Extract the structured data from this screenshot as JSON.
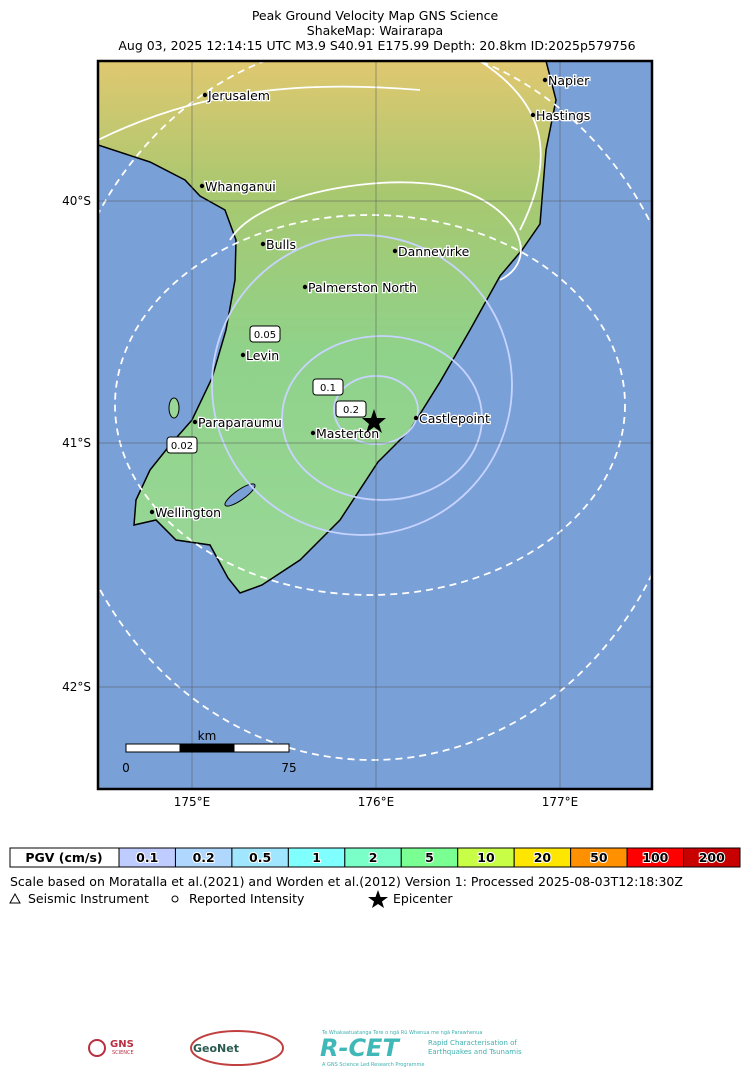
{
  "header": {
    "title": "Peak Ground Velocity Map GNS Science",
    "subtitle": "ShakeMap: Wairarapa",
    "details": "Aug 03, 2025 12:14:15 UTC M3.9 S40.91 E175.99 Depth: 20.8km ID:2025p579756"
  },
  "map": {
    "lat_labels": [
      "40°S",
      "41°S",
      "42°S"
    ],
    "lon_labels": [
      "175°E",
      "176°E",
      "177°E"
    ],
    "cities": [
      "Jerusalem",
      "Whanganui",
      "Bulls",
      "Dannevirke",
      "Palmerston North",
      "Levin",
      "Paraparaumu",
      "Masterton",
      "Castlepoint",
      "Wellington",
      "Napier",
      "Hastings"
    ],
    "contour_labels": [
      "0.05",
      "0.1",
      "0.2",
      "0.02"
    ],
    "scale_bar": {
      "unit": "km",
      "start": "0",
      "end": "75"
    }
  },
  "legend": {
    "title": "PGV (cm/s)",
    "bins": [
      "0.1",
      "0.2",
      "0.5",
      "1",
      "2",
      "5",
      "10",
      "20",
      "50",
      "100",
      "200"
    ],
    "colors": [
      "#bfccff",
      "#b0d8ff",
      "#a0e6ff",
      "#80ffff",
      "#7affc8",
      "#7aff93",
      "#c8ff46",
      "#ffe600",
      "#ff9100",
      "#ff0000",
      "#c80000"
    ],
    "note": "Scale based on Moratalla et al.(2021) and Worden et al.(2012)   Version 1: Processed 2025-08-03T12:18:30Z",
    "items": [
      "Seismic Instrument",
      "Reported Intensity",
      "Epicenter"
    ]
  },
  "logos": {
    "gns": "GNS",
    "gns_sub": "SCIENCE",
    "geonet": "GeoNet",
    "rcet": "R-CET",
    "rcet_top": "Te Whakaatuatanga Tere o ngā Rū Whenua me ngā Parawhenua",
    "rcet_sub1": "Rapid Characterisation of",
    "rcet_sub2": "Earthquakes and Tsunamis",
    "rcet_bottom": "A GNS Science Led Research Programme"
  }
}
